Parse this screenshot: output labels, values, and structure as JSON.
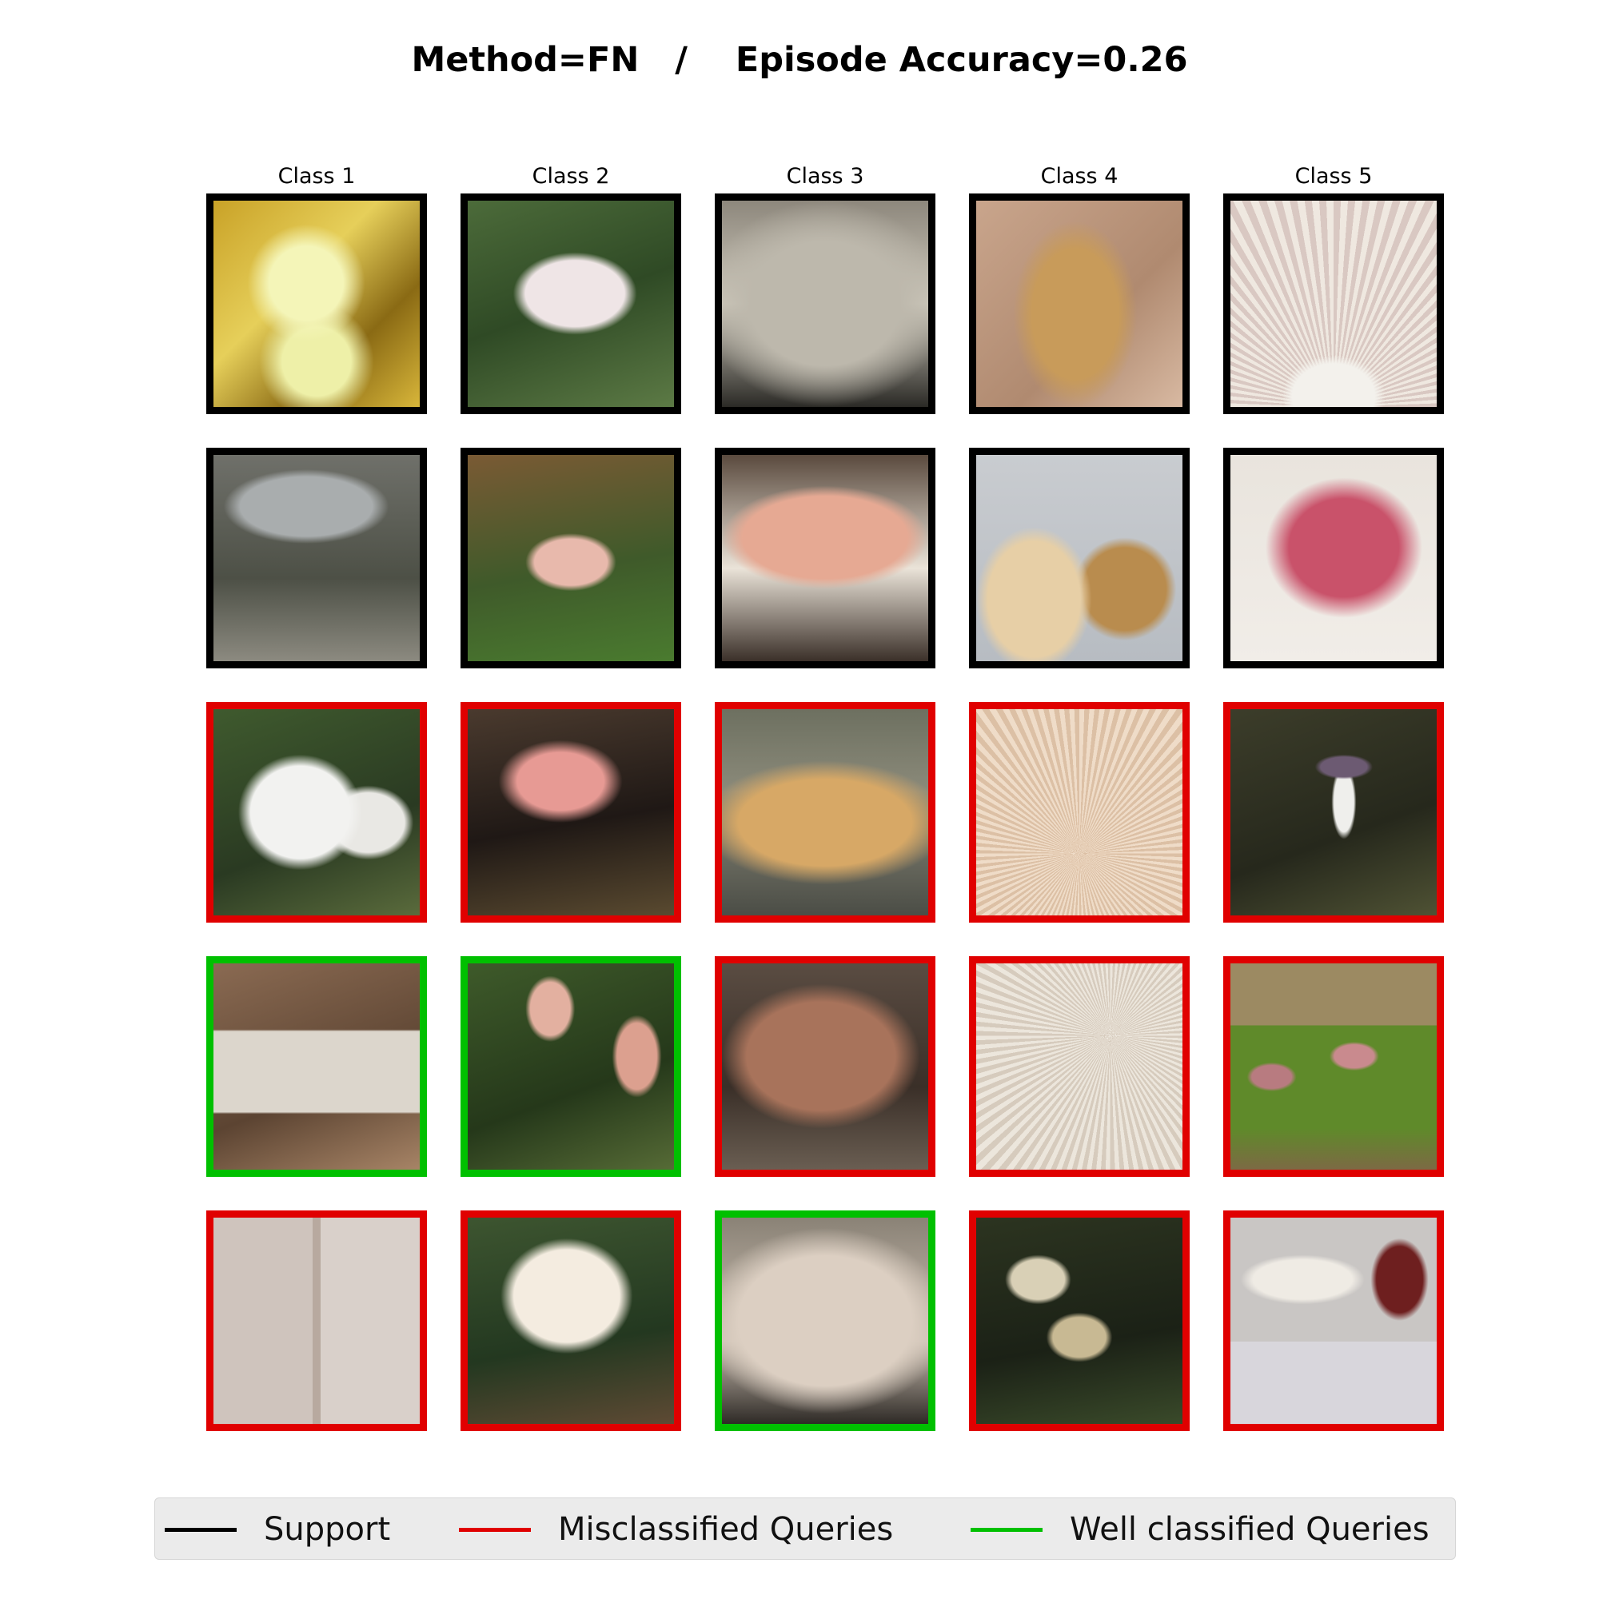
{
  "title": "Method=FN   /    Episode Accuracy=0.26",
  "colors": {
    "support": "#000000",
    "misclassified": "#e00000",
    "well_classified": "#00c000"
  },
  "columns": [
    "Class 1",
    "Class 2",
    "Class 3",
    "Class 4",
    "Class 5"
  ],
  "rows": [
    [
      {
        "status": "support",
        "image": "yellow-mushrooms-in-straw"
      },
      {
        "status": "support",
        "image": "pale-pink-cap-in-moss"
      },
      {
        "status": "support",
        "image": "grey-crust-fungus"
      },
      {
        "status": "support",
        "image": "dirty-stem-on-wood"
      },
      {
        "status": "support",
        "image": "pink-edged-gills-underside"
      }
    ],
    [
      {
        "status": "support",
        "image": "grey-gilled-mushroom"
      },
      {
        "status": "support",
        "image": "small-pink-cap-in-leaves"
      },
      {
        "status": "support",
        "image": "pink-bracket-fungus"
      },
      {
        "status": "support",
        "image": "tan-mushrooms-on-grey"
      },
      {
        "status": "support",
        "image": "red-white-cap"
      }
    ],
    [
      {
        "status": "misclassified",
        "image": "white-mushroom-in-grass"
      },
      {
        "status": "misclassified",
        "image": "pink-white-cap-dark-leaves"
      },
      {
        "status": "misclassified",
        "image": "orange-crust-on-rock"
      },
      {
        "status": "misclassified",
        "image": "cream-gills-closeup"
      },
      {
        "status": "misclassified",
        "image": "purple-cap-in-twigs"
      }
    ],
    [
      {
        "status": "well_classified",
        "image": "white-stem-on-leaves"
      },
      {
        "status": "well_classified",
        "image": "pink-caps-in-grass"
      },
      {
        "status": "misclassified",
        "image": "brown-bracket-fungus"
      },
      {
        "status": "misclassified",
        "image": "white-gills-closeup"
      },
      {
        "status": "misclassified",
        "image": "small-pink-caps-moss"
      }
    ],
    [
      {
        "status": "misclassified",
        "image": "white-mushrooms-collage"
      },
      {
        "status": "misclassified",
        "image": "cream-cap-in-grass"
      },
      {
        "status": "well_classified",
        "image": "pale-crust-fungus"
      },
      {
        "status": "misclassified",
        "image": "cluster-of-tan-caps"
      },
      {
        "status": "misclassified",
        "image": "dark-red-cap-on-ruler"
      }
    ]
  ],
  "legend": [
    {
      "key": "support",
      "label": "Support"
    },
    {
      "key": "misclassified",
      "label": "Misclassified Queries"
    },
    {
      "key": "well_classified",
      "label": "Well classified Queries"
    }
  ]
}
